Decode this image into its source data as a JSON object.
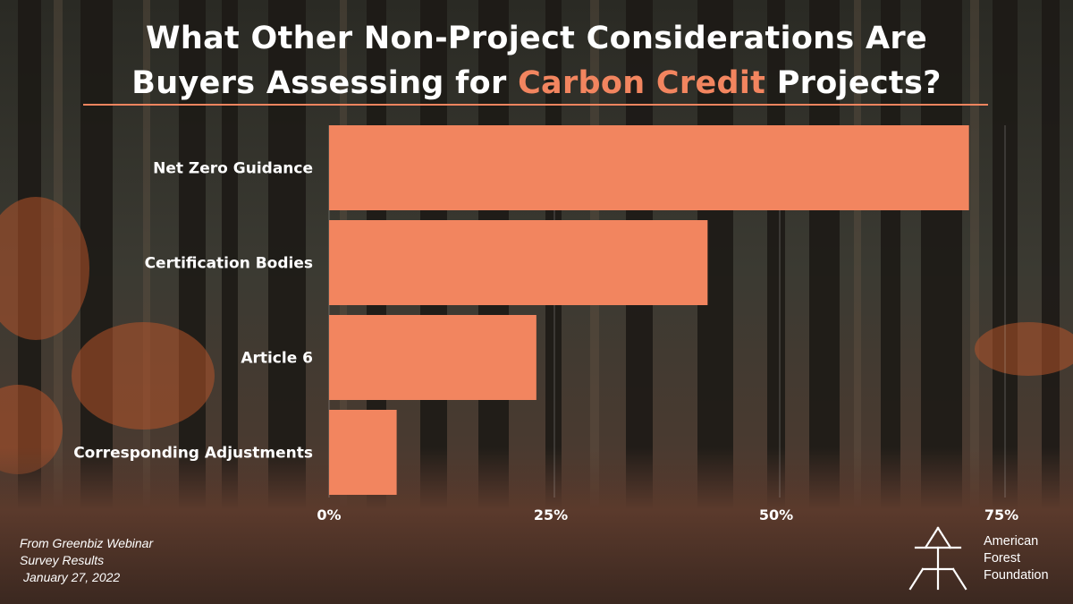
{
  "title": {
    "line1": "What Other Non-Project Considerations Are",
    "line2_before": "Buyers Assessing for ",
    "line2_highlight": "Carbon Credit",
    "line2_after": " Projects?"
  },
  "chart_data": {
    "type": "bar",
    "orientation": "horizontal",
    "categories": [
      "Net Zero Guidance",
      "Certification Bodies",
      "Article 6",
      "Corresponding Adjustments"
    ],
    "values": [
      71,
      42,
      23,
      7.5
    ],
    "xlim": [
      0,
      75
    ],
    "xticks": [
      0,
      25,
      50,
      75
    ],
    "xtick_labels": [
      "0%",
      "25%",
      "50%",
      "75%"
    ],
    "bar_color": "#f2855f",
    "grid": "vertical",
    "legend": "none"
  },
  "source": {
    "line1": "From Greenbiz Webinar",
    "line2": "Survey Results",
    "line3": "January 27, 2022"
  },
  "logo": {
    "line1": "American",
    "line2": "Forest",
    "line3": "Foundation"
  },
  "colors": {
    "accent": "#f2855f",
    "text": "#ffffff"
  }
}
